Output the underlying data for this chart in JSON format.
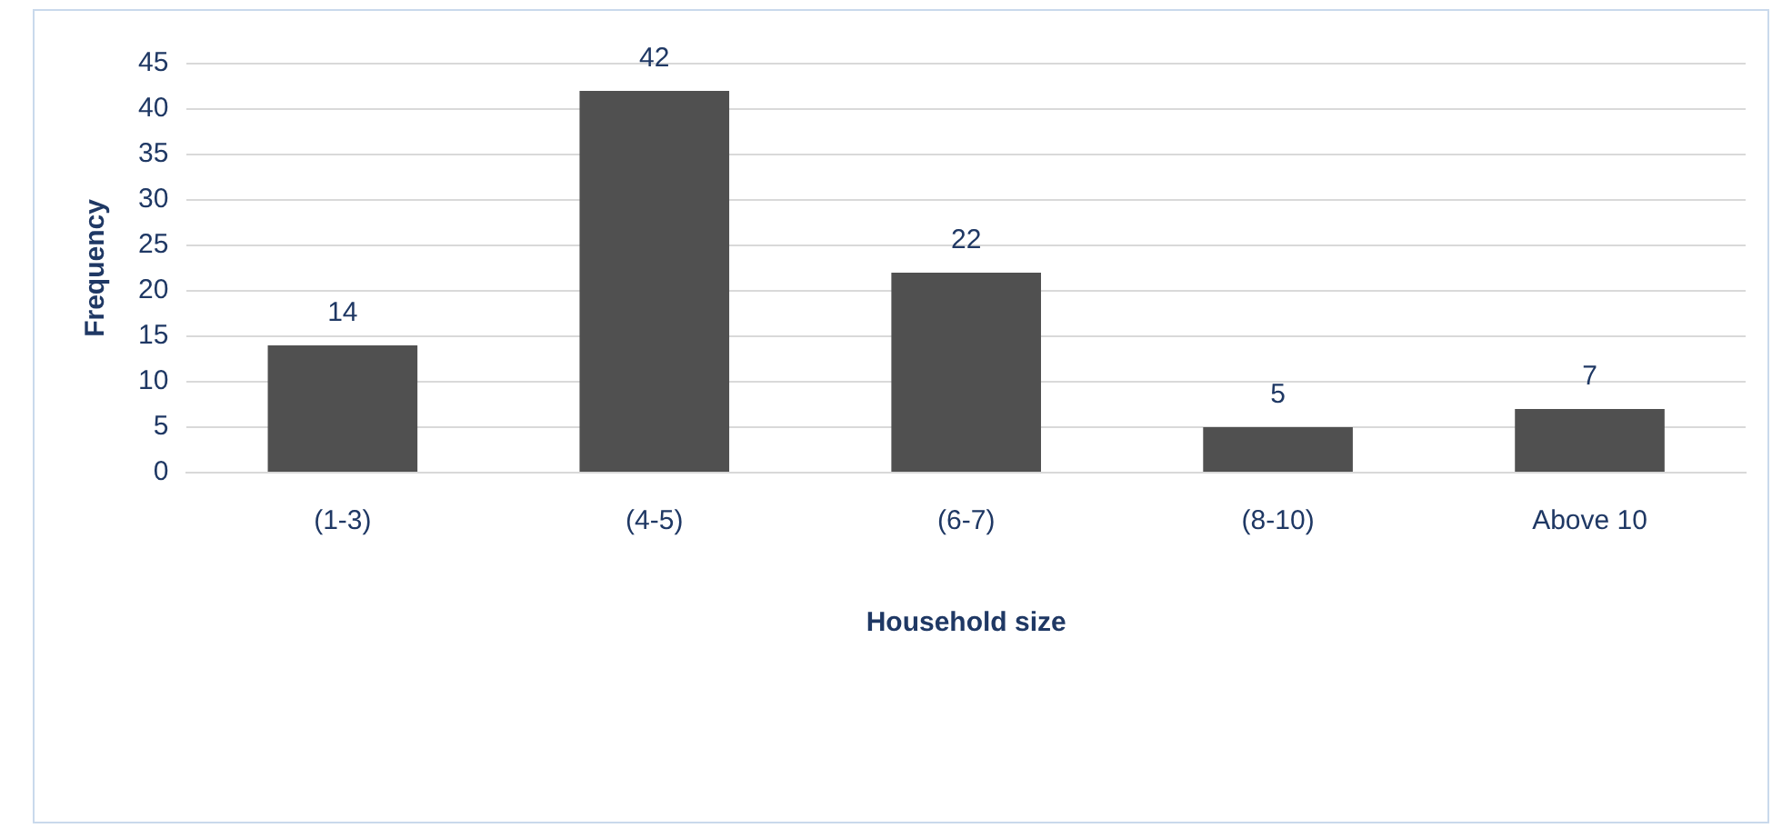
{
  "chart_data": {
    "type": "bar",
    "xlabel": "Household size",
    "ylabel": "Frequency",
    "categories": [
      "(1-3)",
      "(4-5)",
      "(6-7)",
      "(8-10)",
      "Above 10"
    ],
    "values": [
      14,
      42,
      22,
      5,
      7
    ],
    "color": "#505050",
    "ylim": [
      0,
      45
    ],
    "yticks": [
      0,
      5,
      10,
      15,
      20,
      25,
      30,
      35,
      40,
      45
    ],
    "grid": "y",
    "legend": false,
    "data_labels": true
  }
}
